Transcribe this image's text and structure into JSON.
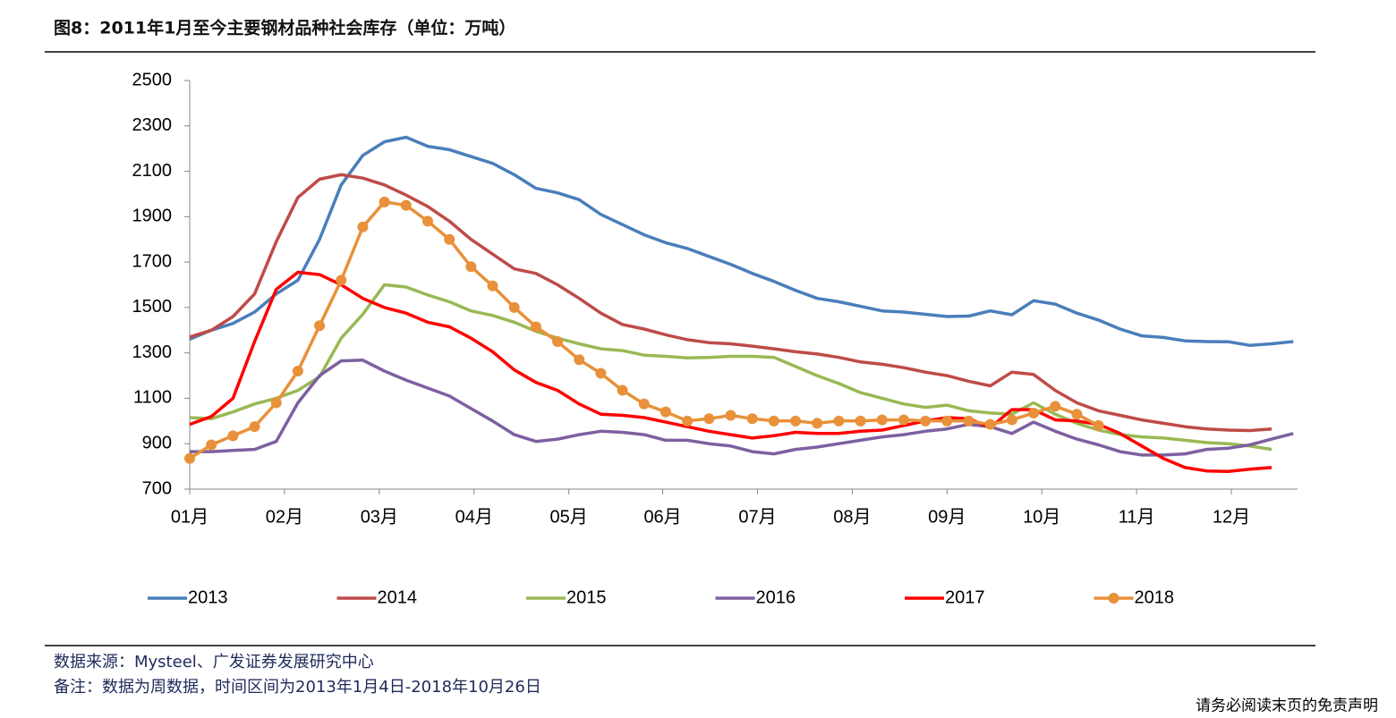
{
  "chart_data": {
    "type": "line",
    "title": "图8：2011年1月至今主要钢材品种社会库存（单位：万吨）",
    "x": [
      0,
      1,
      2,
      3,
      4,
      5,
      6,
      7,
      8,
      9,
      10,
      11,
      12,
      13,
      14,
      15,
      16,
      17,
      18,
      19,
      20,
      21,
      22,
      23,
      24,
      25,
      26,
      27,
      28,
      29,
      30,
      31,
      32,
      33,
      34,
      35,
      36,
      37,
      38,
      39,
      40,
      41,
      42,
      43,
      44,
      45,
      46,
      47,
      48,
      49,
      50,
      51
    ],
    "xlim": [
      0,
      51.2
    ],
    "xticks": [
      {
        "value": 0,
        "label": "01月"
      },
      {
        "value": 4.38,
        "label": "02月"
      },
      {
        "value": 8.76,
        "label": "03月"
      },
      {
        "value": 13.14,
        "label": "04月"
      },
      {
        "value": 17.52,
        "label": "05月"
      },
      {
        "value": 21.86,
        "label": "06月"
      },
      {
        "value": 26.24,
        "label": "07月"
      },
      {
        "value": 30.62,
        "label": "08月"
      },
      {
        "value": 35.0,
        "label": "09月"
      },
      {
        "value": 39.38,
        "label": "10月"
      },
      {
        "value": 43.76,
        "label": "11月"
      },
      {
        "value": 48.14,
        "label": "12月"
      }
    ],
    "ylim": [
      700,
      2500
    ],
    "yticks": [
      700,
      900,
      1100,
      1300,
      1500,
      1700,
      1900,
      2100,
      2300,
      2500
    ],
    "series": [
      {
        "name": "2013",
        "color": "#4a7ebb",
        "markers": false,
        "values": [
          1360,
          1400,
          1430,
          1480,
          1560,
          1620,
          1800,
          2040,
          2170,
          2230,
          2250,
          2210,
          2195,
          2165,
          2135,
          2085,
          2025,
          2005,
          1975,
          1910,
          1865,
          1820,
          1785,
          1760,
          1725,
          1690,
          1650,
          1615,
          1575,
          1540,
          1525,
          1505,
          1485,
          1480,
          1470,
          1460,
          1462,
          1485,
          1468,
          1530,
          1515,
          1475,
          1445,
          1405,
          1375,
          1368,
          1353,
          1350,
          1349,
          1333,
          1340,
          1350
        ]
      },
      {
        "name": "2014",
        "color": "#be4b48",
        "markers": false,
        "values": [
          1370,
          1400,
          1460,
          1560,
          1790,
          1985,
          2065,
          2085,
          2070,
          2040,
          1995,
          1945,
          1880,
          1800,
          1735,
          1670,
          1650,
          1600,
          1540,
          1475,
          1425,
          1405,
          1380,
          1358,
          1345,
          1340,
          1330,
          1318,
          1305,
          1295,
          1280,
          1260,
          1250,
          1235,
          1215,
          1200,
          1175,
          1155,
          1215,
          1205,
          1135,
          1080,
          1045,
          1025,
          1005,
          990,
          975,
          965,
          960,
          958,
          965,
          null
        ]
      },
      {
        "name": "2015",
        "color": "#98b954",
        "markers": false,
        "values": [
          1015,
          1010,
          1040,
          1075,
          1100,
          1135,
          1195,
          1365,
          1470,
          1600,
          1590,
          1555,
          1525,
          1485,
          1465,
          1435,
          1395,
          1365,
          1340,
          1318,
          1310,
          1290,
          1285,
          1278,
          1280,
          1285,
          1285,
          1280,
          1240,
          1200,
          1165,
          1125,
          1100,
          1075,
          1060,
          1070,
          1045,
          1035,
          1030,
          1080,
          1030,
          990,
          960,
          940,
          930,
          925,
          915,
          905,
          900,
          890,
          875,
          null
        ]
      },
      {
        "name": "2016",
        "color": "#7d60a0",
        "markers": false,
        "values": [
          865,
          865,
          870,
          875,
          910,
          1080,
          1200,
          1265,
          1268,
          1220,
          1180,
          1145,
          1110,
          1055,
          1000,
          940,
          910,
          920,
          940,
          955,
          950,
          940,
          915,
          915,
          900,
          890,
          865,
          855,
          875,
          885,
          900,
          915,
          930,
          940,
          955,
          965,
          985,
          975,
          945,
          995,
          955,
          920,
          895,
          865,
          850,
          850,
          855,
          875,
          880,
          895,
          920,
          945
        ]
      },
      {
        "name": "2017",
        "color": "#ff0000",
        "markers": false,
        "values": [
          985,
          1020,
          1100,
          1350,
          1580,
          1655,
          1645,
          1600,
          1540,
          1500,
          1475,
          1435,
          1415,
          1365,
          1305,
          1225,
          1170,
          1135,
          1075,
          1030,
          1025,
          1015,
          995,
          975,
          955,
          940,
          925,
          935,
          950,
          945,
          945,
          955,
          960,
          980,
          1000,
          1015,
          1010,
          970,
          1050,
          1050,
          1005,
          1000,
          985,
          945,
          890,
          835,
          795,
          780,
          778,
          788,
          795,
          null
        ]
      },
      {
        "name": "2018",
        "color": "#e8913a",
        "markers": true,
        "values": [
          835,
          895,
          935,
          975,
          1080,
          1220,
          1420,
          1620,
          1855,
          1965,
          1950,
          1880,
          1800,
          1680,
          1595,
          1500,
          1415,
          1350,
          1270,
          1210,
          1135,
          1075,
          1040,
          1000,
          1010,
          1025,
          1010,
          1000,
          1000,
          990,
          1000,
          1000,
          1005,
          1005,
          1000,
          1000,
          1000,
          985,
          1005,
          1035,
          1065,
          1030,
          980,
          null,
          null,
          null,
          null,
          null,
          null,
          null,
          null,
          null
        ]
      }
    ]
  },
  "notes": [
    "数据来源：Mysteel、广发证券发展研究中心",
    "备注：数据为周数据，时间区间为2013年1月4日-2018年10月26日"
  ],
  "footer": "请务必阅读末页的免责声明"
}
